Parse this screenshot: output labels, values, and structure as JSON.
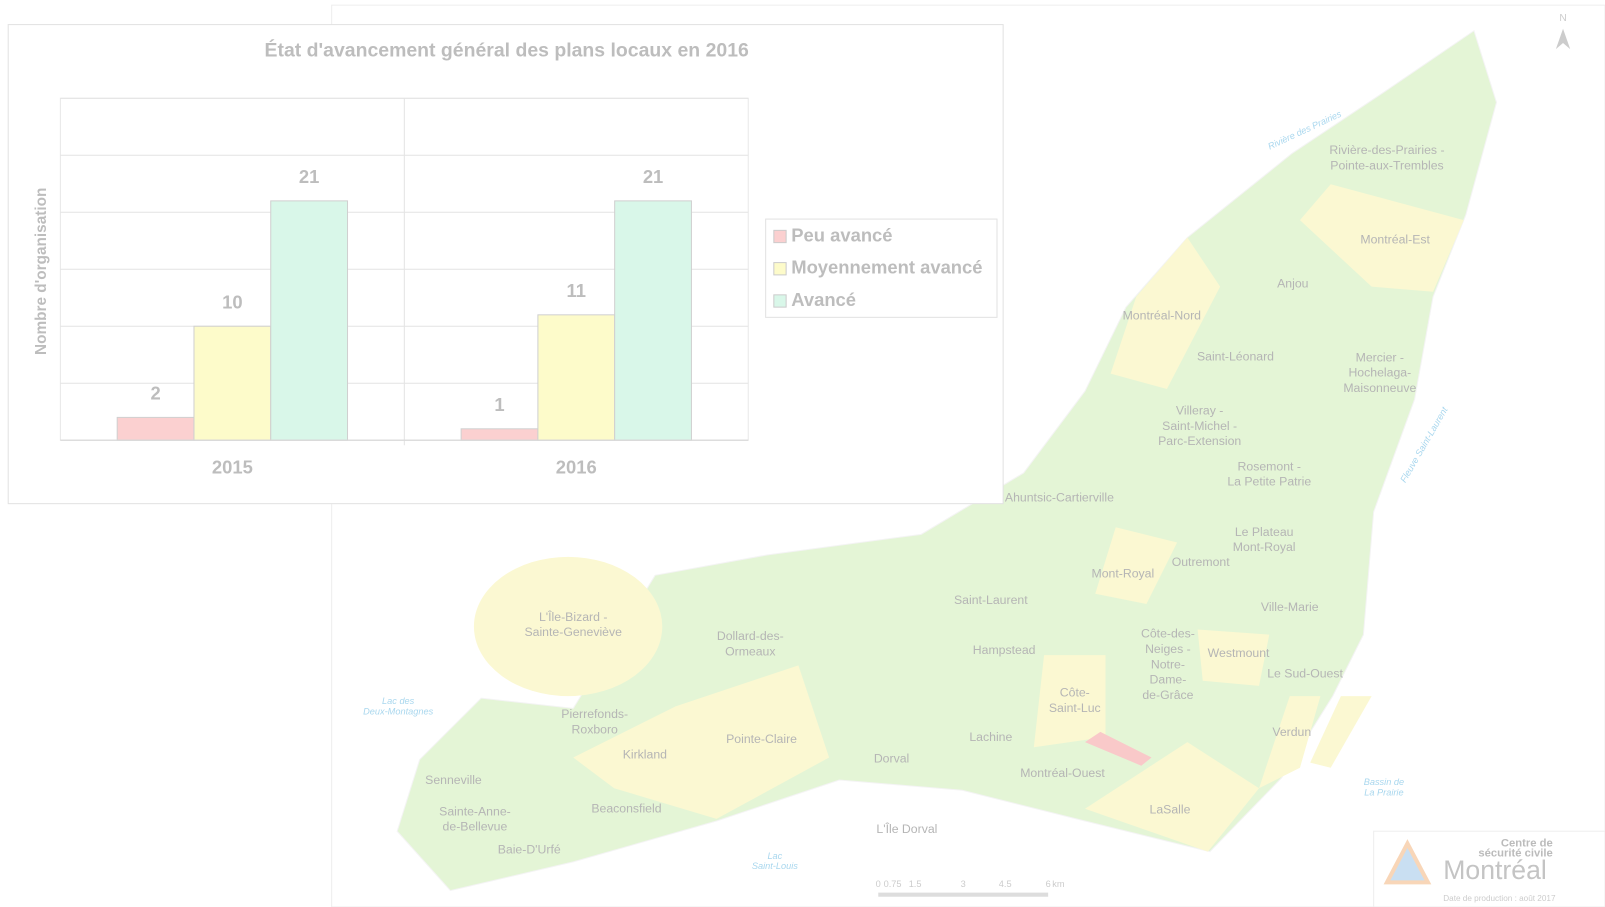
{
  "chart_data": {
    "type": "bar",
    "title": "État d'avancement général des plans locaux en 2016",
    "ylabel": "Nombre d'organisation",
    "categories": [
      "2015",
      "2016"
    ],
    "series": [
      {
        "name": "Peu avancé",
        "color": "#fbd0d0",
        "values": [
          2,
          1
        ]
      },
      {
        "name": "Moyennement avancé",
        "color": "#fdfbca",
        "values": [
          10,
          11
        ]
      },
      {
        "name": "Avancé",
        "color": "#d9f7e9",
        "values": [
          21,
          21
        ]
      }
    ],
    "ylim": [
      0,
      30
    ],
    "yticks": [
      0,
      5,
      10,
      15,
      20,
      25,
      30
    ],
    "grid": true,
    "legend": "right"
  },
  "map": {
    "labels": [
      [
        "Rivière-des-Prairies -",
        "Pointe-aux-Trembles"
      ],
      [
        "Montréal-Est"
      ],
      [
        "Anjou"
      ],
      [
        "Montréal-Nord"
      ],
      [
        "Saint-Léonard"
      ],
      [
        "Mercier -",
        "Hochelaga-",
        "Maisonneuve"
      ],
      [
        "Villeray -",
        "Saint-Michel -",
        "Parc-Extension"
      ],
      [
        "Rosemont -",
        "La Petite Patrie"
      ],
      [
        "Ahuntsic-Cartierville"
      ],
      [
        "Le Plateau",
        "Mont-Royal"
      ],
      [
        "Outremont"
      ],
      [
        "Mont-Royal"
      ],
      [
        "Saint-Laurent"
      ],
      [
        "Ville-Marie"
      ],
      [
        "L'Île-Bizard -",
        "Sainte-Geneviève"
      ],
      [
        "Dollard-des-",
        "Ormeaux"
      ],
      [
        "Hampstead"
      ],
      [
        "Côte-des-",
        "Neiges -",
        "Notre-",
        "Dame-",
        "de-Grâce"
      ],
      [
        "Westmount"
      ],
      [
        "Le Sud-Ouest"
      ],
      [
        "Côte-",
        "Saint-Luc"
      ],
      [
        "Pierrefonds-",
        "Roxboro"
      ],
      [
        "Pointe-Claire"
      ],
      [
        "Lachine"
      ],
      [
        "Verdun"
      ],
      [
        "Kirkland"
      ],
      [
        "Dorval"
      ],
      [
        "Montréal-Ouest"
      ],
      [
        "Senneville"
      ],
      [
        "LaSalle"
      ],
      [
        "Beaconsfield"
      ],
      [
        "Sainte-Anne-",
        "de-Bellevue"
      ],
      [
        "L'Île Dorval"
      ],
      [
        "Baie-D'Urfé"
      ]
    ],
    "water": [
      [
        "Lac des",
        "Deux-Montagnes"
      ],
      [
        "Lac",
        "Saint-Louis"
      ],
      [
        "Rivière des Prairies"
      ],
      [
        "Fleuve Saint-Laurent"
      ],
      [
        "Bassin de",
        "La Prairie"
      ]
    ],
    "north": "N",
    "scale": [
      "0",
      "0.75",
      "1.5",
      "3",
      "4.5",
      "6",
      "km"
    ],
    "logo": {
      "line1": "Centre de",
      "line2": "sécurité civile",
      "name": "Montréal",
      "date": "Date de production : août 2017"
    }
  }
}
